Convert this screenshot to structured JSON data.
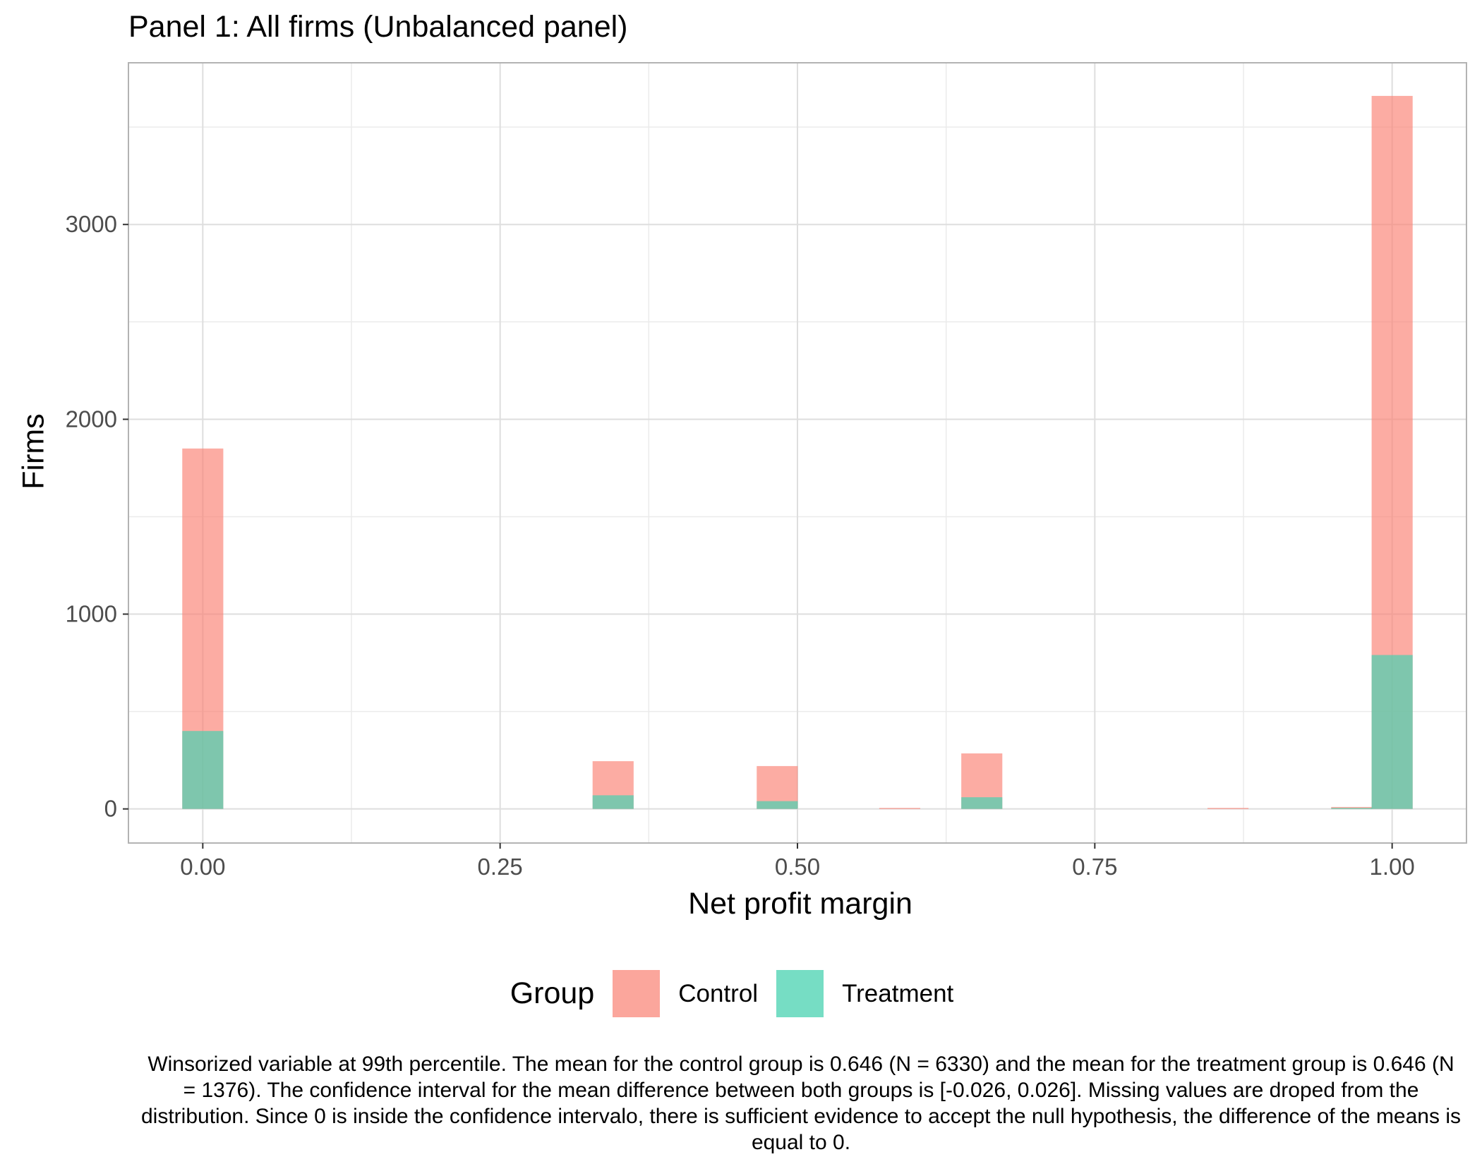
{
  "chart_data": {
    "type": "bar",
    "title": "Panel 1: All firms (Unbalanced panel)",
    "xlabel": "Net profit margin",
    "ylabel": "Firms",
    "xlim": [
      -0.0625,
      1.0625
    ],
    "ylim": [
      -175,
      3830
    ],
    "x_ticks": [
      0.0,
      0.25,
      0.5,
      0.75,
      1.0
    ],
    "x_tick_labels": [
      "0.00",
      "0.25",
      "0.50",
      "0.75",
      "1.00"
    ],
    "y_ticks": [
      0,
      1000,
      2000,
      3000
    ],
    "y_tick_labels": [
      "0",
      "1000",
      "2000",
      "3000"
    ],
    "bin_width": 0.0345,
    "bin_centers": [
      0.0,
      0.345,
      0.483,
      0.586,
      0.655,
      0.862,
      0.966,
      1.0
    ],
    "grid": true,
    "legend_position": "bottom",
    "legend_title": "Group",
    "series": [
      {
        "name": "Control",
        "color": "#fa8072",
        "opacity": 0.65,
        "values": [
          1850,
          245,
          220,
          5,
          285,
          5,
          10,
          3660
        ]
      },
      {
        "name": "Treatment",
        "color": "#48d1b0",
        "opacity": 0.7,
        "values": [
          400,
          70,
          40,
          0,
          60,
          0,
          5,
          790
        ]
      }
    ],
    "caption": "Winsorized variable at 99th percentile. The mean for the control group is 0.646 (N = 6330) and the mean for the treatment group is 0.646 (N = 1376). The confidence interval for the mean difference between both groups is [-0.026, 0.026]. Missing values are droped from the distribution. Since 0 is inside the confidence intervalo, there is sufficient evidence to accept the null hypothesis, the difference of the means is equal to 0."
  }
}
